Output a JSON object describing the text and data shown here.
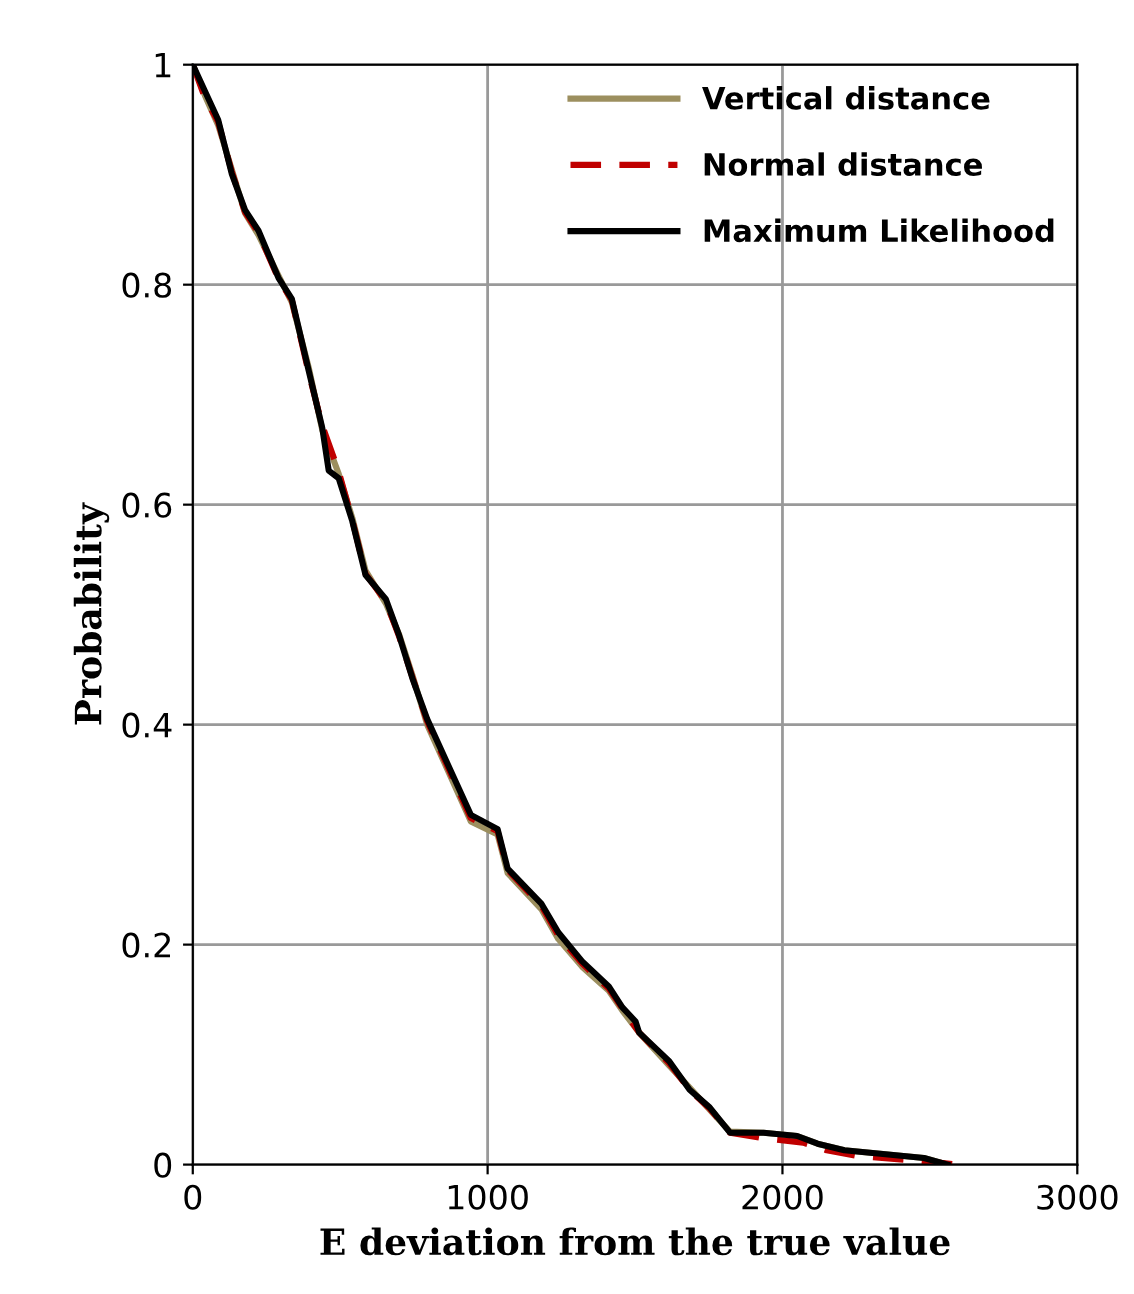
{
  "chart_data": {
    "type": "line",
    "xlabel": "E deviation from the true value",
    "ylabel": "Probability",
    "xlim": [
      0,
      3000
    ],
    "ylim": [
      0,
      1
    ],
    "xticks": [
      0,
      1000,
      2000,
      3000
    ],
    "yticks": [
      0,
      0.2,
      0.4,
      0.6,
      0.8,
      1
    ],
    "grid": true,
    "legend": "top right",
    "marker": "none",
    "series": [
      {
        "name": "Vertical distance",
        "color": "#9c8f5f",
        "line_style": "solid",
        "x": [
          0,
          41,
          86,
          132,
          177,
          223,
          291,
          336,
          393,
          439,
          495,
          541,
          586,
          655,
          700,
          745,
          795,
          943,
          1034,
          1068,
          1183,
          1240,
          1320,
          1411,
          1457,
          1514,
          1616,
          1685,
          1753,
          1822,
          1936,
          2050,
          2119,
          2210,
          2480,
          2560
        ],
        "values": [
          1.0,
          0.972,
          0.945,
          0.905,
          0.865,
          0.845,
          0.808,
          0.784,
          0.725,
          0.668,
          0.628,
          0.588,
          0.54,
          0.51,
          0.482,
          0.445,
          0.4,
          0.312,
          0.3,
          0.265,
          0.232,
          0.205,
          0.18,
          0.158,
          0.14,
          0.12,
          0.09,
          0.07,
          0.05,
          0.03,
          0.029,
          0.026,
          0.019,
          0.013,
          0.006,
          0
        ]
      },
      {
        "name": "Normal distance",
        "color": "#c00000",
        "line_style": "dashed",
        "x": [
          0,
          41,
          86,
          132,
          177,
          223,
          291,
          336,
          393,
          439,
          495,
          541,
          586,
          655,
          700,
          745,
          795,
          943,
          1034,
          1068,
          1183,
          1240,
          1320,
          1411,
          1457,
          1514,
          1616,
          1685,
          1753,
          1822,
          1936,
          2070,
          2150,
          2250,
          2520,
          2600
        ],
        "values": [
          1.0,
          0.97,
          0.948,
          0.903,
          0.866,
          0.847,
          0.805,
          0.786,
          0.72,
          0.672,
          0.63,
          0.586,
          0.537,
          0.512,
          0.48,
          0.443,
          0.403,
          0.315,
          0.303,
          0.268,
          0.235,
          0.208,
          0.183,
          0.16,
          0.142,
          0.12,
          0.092,
          0.068,
          0.051,
          0.029,
          0.024,
          0.02,
          0.013,
          0.008,
          0.002,
          0
        ]
      },
      {
        "name": "Maximum Likelihood",
        "color": "#000000",
        "line_style": "solid",
        "x": [
          0,
          41,
          86,
          132,
          177,
          223,
          291,
          336,
          393,
          439,
          461,
          495,
          541,
          586,
          655,
          700,
          745,
          795,
          943,
          1034,
          1068,
          1183,
          1240,
          1320,
          1411,
          1457,
          1502,
          1514,
          1616,
          1685,
          1753,
          1822,
          1936,
          2050,
          2119,
          2210,
          2480,
          2560
        ],
        "values": [
          1.0,
          0.976,
          0.95,
          0.901,
          0.868,
          0.849,
          0.806,
          0.787,
          0.722,
          0.67,
          0.631,
          0.624,
          0.585,
          0.536,
          0.514,
          0.481,
          0.442,
          0.405,
          0.318,
          0.305,
          0.269,
          0.237,
          0.211,
          0.185,
          0.162,
          0.143,
          0.13,
          0.12,
          0.094,
          0.068,
          0.052,
          0.029,
          0.029,
          0.026,
          0.019,
          0.013,
          0.006,
          0
        ]
      }
    ]
  }
}
